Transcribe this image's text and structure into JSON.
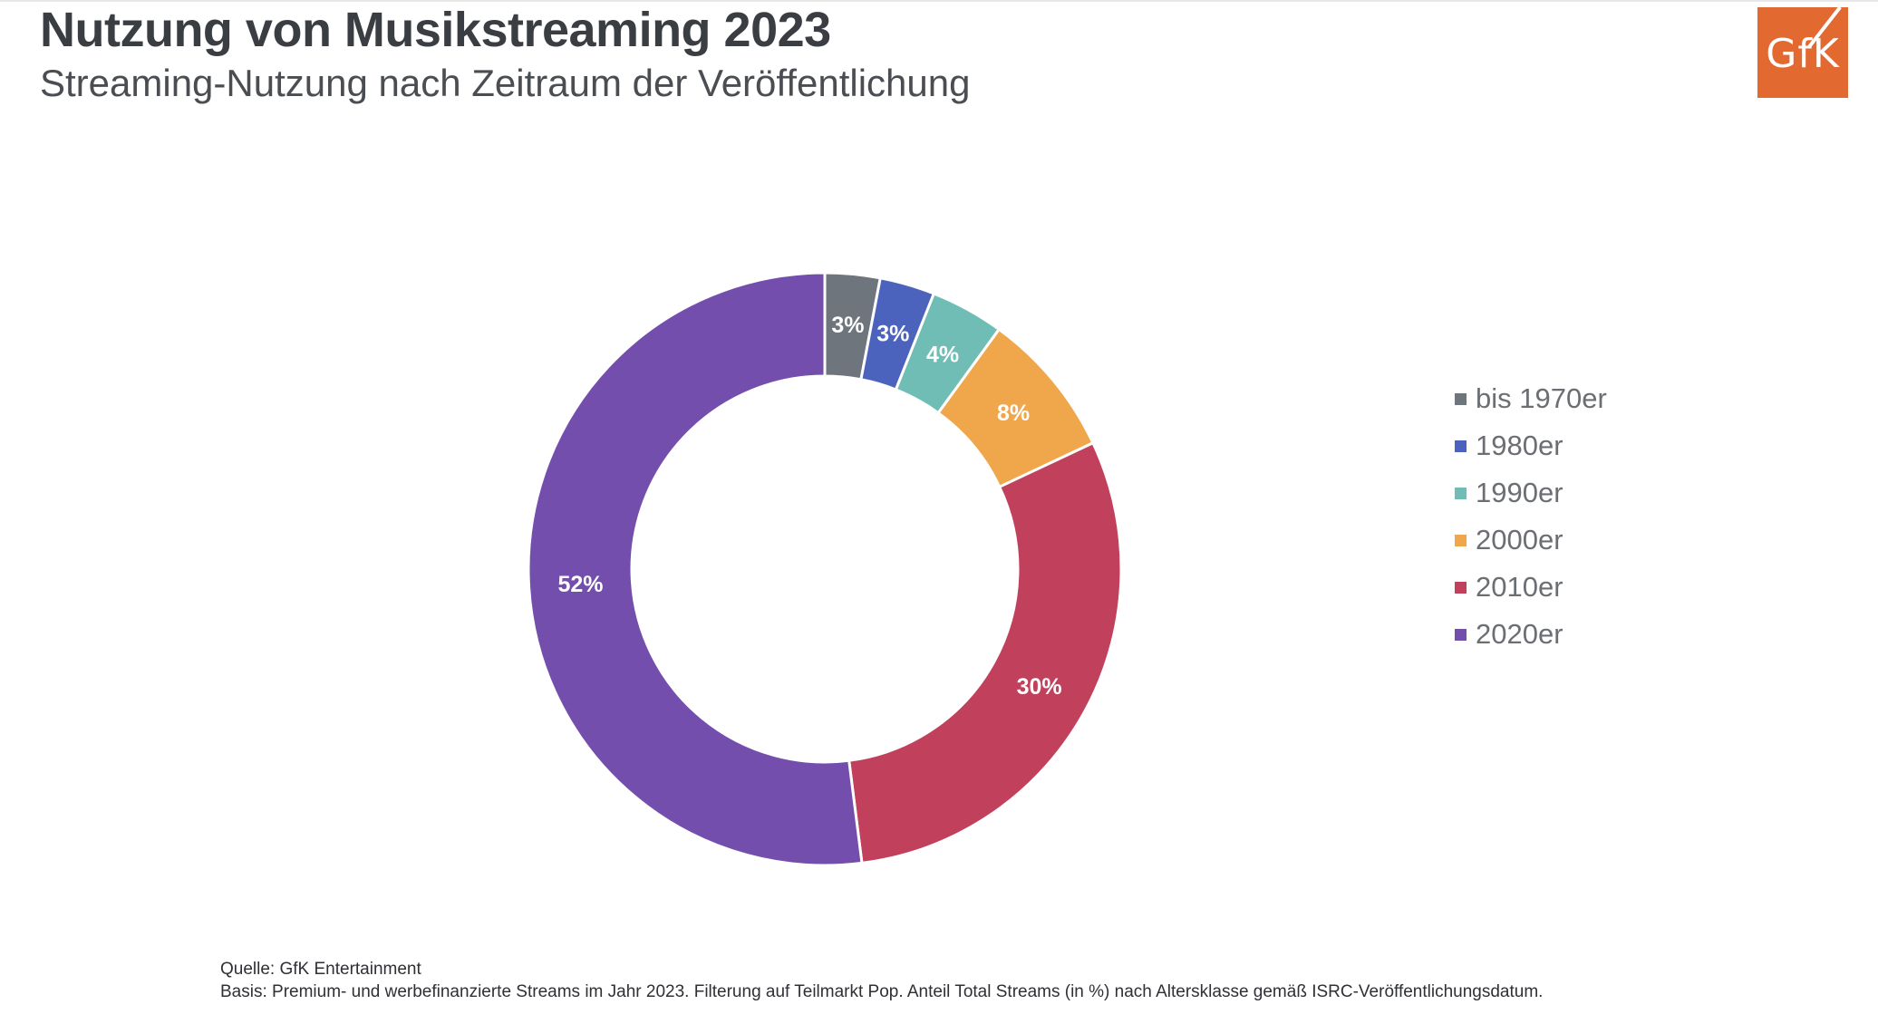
{
  "header": {
    "title": "Nutzung von Musikstreaming 2023",
    "subtitle": "Streaming-Nutzung nach Zeitraum der Veröffentlichung"
  },
  "logo": {
    "text": "GfK",
    "color": "#e2692f"
  },
  "chart_data": {
    "type": "pie",
    "variant": "donut",
    "title": "Nutzung von Musikstreaming 2023",
    "subtitle": "Streaming-Nutzung nach Zeitraum der Veröffentlichung",
    "unit": "%",
    "legend_position": "right",
    "categories": [
      "bis 1970er",
      "1980er",
      "1990er",
      "2000er",
      "2010er",
      "2020er"
    ],
    "values": [
      3,
      3,
      4,
      8,
      30,
      52
    ],
    "labels": [
      "3%",
      "3%",
      "4%",
      "8%",
      "30%",
      "52%"
    ],
    "colors": [
      "#6f757d",
      "#4b63bd",
      "#6fbdb4",
      "#f0a74c",
      "#c1405b",
      "#744ead"
    ]
  },
  "footer": {
    "source": "Quelle: GfK Entertainment",
    "basis": "Basis: Premium- und werbefinanzierte Streams im Jahr 2023. Filterung auf Teilmarkt Pop. Anteil Total Streams (in %) nach Altersklasse gemäß ISRC-Veröffentlichungsdatum."
  }
}
